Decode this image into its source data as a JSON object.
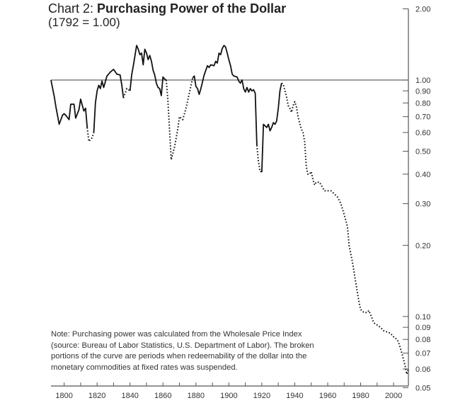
{
  "chart_data": {
    "type": "line",
    "title_prefix": "Chart 2: ",
    "title": "Purchasing Power of the Dollar",
    "subtitle": "(1792 = 1.00)",
    "xlabel": "",
    "ylabel": "",
    "y_scale": "log",
    "xlim": [
      1792,
      2009
    ],
    "ylim": [
      0.05,
      2.0
    ],
    "reference_line": 1.0,
    "x_ticks_minor_step": 10,
    "x_tick_labels": [
      "1800",
      "1820",
      "1840",
      "1860",
      "1880",
      "1900",
      "1920",
      "1940",
      "1960",
      "1980",
      "2000"
    ],
    "y_ticks": [
      2.0,
      1.0,
      0.9,
      0.8,
      0.7,
      0.6,
      0.5,
      0.4,
      0.3,
      0.2,
      0.1,
      0.09,
      0.08,
      0.07,
      0.06,
      0.05
    ],
    "y_tick_labels": [
      "2.00",
      "1.00",
      "0.90",
      "0.80",
      "0.70",
      "0.60",
      "0.50",
      "0.40",
      "0.30",
      "0.20",
      "0.10",
      "0.09",
      "0.08",
      "0.07",
      "0.06",
      "0.05"
    ],
    "segments": [
      {
        "style": "solid",
        "x": [
          1792,
          1794,
          1795,
          1797,
          1799,
          1800,
          1801,
          1803,
          1804,
          1806,
          1807,
          1809,
          1810,
          1812,
          1813,
          1814
        ],
        "y": [
          1.0,
          0.85,
          0.77,
          0.65,
          0.71,
          0.72,
          0.71,
          0.68,
          0.79,
          0.79,
          0.69,
          0.75,
          0.83,
          0.74,
          0.76,
          0.63
        ]
      },
      {
        "style": "dotted",
        "x": [
          1814,
          1815,
          1817,
          1818
        ],
        "y": [
          0.63,
          0.55,
          0.57,
          0.6
        ]
      },
      {
        "style": "solid",
        "x": [
          1818,
          1819,
          1820,
          1821,
          1822,
          1823,
          1824,
          1826,
          1828,
          1830,
          1832,
          1834,
          1835,
          1836
        ],
        "y": [
          0.6,
          0.8,
          0.9,
          0.95,
          0.92,
          0.99,
          0.93,
          1.04,
          1.08,
          1.11,
          1.06,
          1.05,
          0.95,
          0.84
        ]
      },
      {
        "style": "dotted",
        "x": [
          1836,
          1838,
          1840
        ],
        "y": [
          0.84,
          0.92,
          0.9
        ]
      },
      {
        "style": "solid",
        "x": [
          1840,
          1841,
          1842,
          1844,
          1845,
          1846,
          1847,
          1848,
          1849,
          1850,
          1851,
          1852,
          1853,
          1854,
          1855,
          1856,
          1857,
          1858,
          1859,
          1860,
          1861,
          1862
        ],
        "y": [
          0.9,
          1.05,
          1.15,
          1.4,
          1.35,
          1.28,
          1.3,
          1.16,
          1.35,
          1.3,
          1.22,
          1.27,
          1.2,
          1.1,
          1.05,
          0.97,
          0.93,
          0.92,
          0.86,
          1.03,
          1.01,
          1.0
        ]
      },
      {
        "style": "dotted",
        "x": [
          1862,
          1863,
          1865,
          1867,
          1869,
          1870,
          1872,
          1874,
          1876,
          1878
        ],
        "y": [
          1.0,
          0.82,
          0.46,
          0.52,
          0.62,
          0.7,
          0.68,
          0.76,
          0.88,
          1.02
        ]
      },
      {
        "style": "solid",
        "x": [
          1878,
          1879,
          1880,
          1881,
          1882,
          1883,
          1885,
          1887,
          1888,
          1889,
          1891,
          1892,
          1893,
          1894,
          1895,
          1896,
          1897,
          1898,
          1899,
          1900,
          1901,
          1902,
          1903,
          1905,
          1906,
          1907,
          1908,
          1909,
          1910,
          1911,
          1912,
          1913,
          1914,
          1915,
          1916,
          1917
        ],
        "y": [
          1.02,
          1.04,
          0.94,
          0.92,
          0.87,
          0.92,
          1.05,
          1.15,
          1.13,
          1.16,
          1.15,
          1.2,
          1.18,
          1.3,
          1.28,
          1.36,
          1.4,
          1.38,
          1.3,
          1.22,
          1.15,
          1.06,
          1.04,
          1.03,
          0.99,
          0.97,
          1.0,
          0.92,
          0.89,
          0.93,
          0.89,
          0.92,
          0.9,
          0.91,
          0.88,
          0.53
        ]
      },
      {
        "style": "dotted",
        "x": [
          1917,
          1918,
          1919
        ],
        "y": [
          0.53,
          0.45,
          0.41
        ]
      },
      {
        "style": "solid",
        "x": [
          1919,
          1920,
          1921,
          1922,
          1923,
          1924,
          1925,
          1926,
          1927,
          1928,
          1929,
          1930,
          1931,
          1932
        ],
        "y": [
          0.41,
          0.41,
          0.65,
          0.64,
          0.63,
          0.65,
          0.61,
          0.63,
          0.66,
          0.65,
          0.67,
          0.76,
          0.9,
          0.97
        ]
      },
      {
        "style": "dotted",
        "x": [
          1932,
          1933,
          1935,
          1936,
          1937,
          1938,
          1939,
          1940,
          1941,
          1942,
          1944,
          1945,
          1946,
          1947,
          1948,
          1949,
          1950,
          1951,
          1952,
          1953,
          1955,
          1957,
          1958,
          1960,
          1962,
          1964,
          1966,
          1968,
          1970,
          1972,
          1973,
          1975,
          1977,
          1979,
          1980,
          1982,
          1984,
          1985,
          1986,
          1988,
          1990,
          1992,
          1994,
          1996,
          1998,
          2000,
          2002,
          2003,
          2005,
          2007,
          2008,
          2009
        ],
        "y": [
          0.97,
          0.96,
          0.85,
          0.78,
          0.76,
          0.73,
          0.78,
          0.81,
          0.77,
          0.7,
          0.62,
          0.6,
          0.55,
          0.43,
          0.4,
          0.4,
          0.41,
          0.38,
          0.36,
          0.37,
          0.37,
          0.35,
          0.34,
          0.34,
          0.34,
          0.33,
          0.32,
          0.3,
          0.27,
          0.24,
          0.2,
          0.17,
          0.14,
          0.115,
          0.107,
          0.104,
          0.104,
          0.106,
          0.102,
          0.094,
          0.092,
          0.09,
          0.087,
          0.086,
          0.085,
          0.082,
          0.08,
          0.078,
          0.07,
          0.062,
          0.057,
          0.06
        ]
      }
    ],
    "note_lines": [
      "Note: Purchasing power was calculated from the Wholesale Price Index",
      "(source: Bureau of Labor Statistics, U.S. Department of Labor). The broken",
      "portions of the curve are periods when redeemability of the dollar into the",
      "monetary commodities at fixed rates was suspended."
    ],
    "colors": {
      "line": "#111111",
      "axis": "#555555",
      "text": "#333333"
    }
  }
}
